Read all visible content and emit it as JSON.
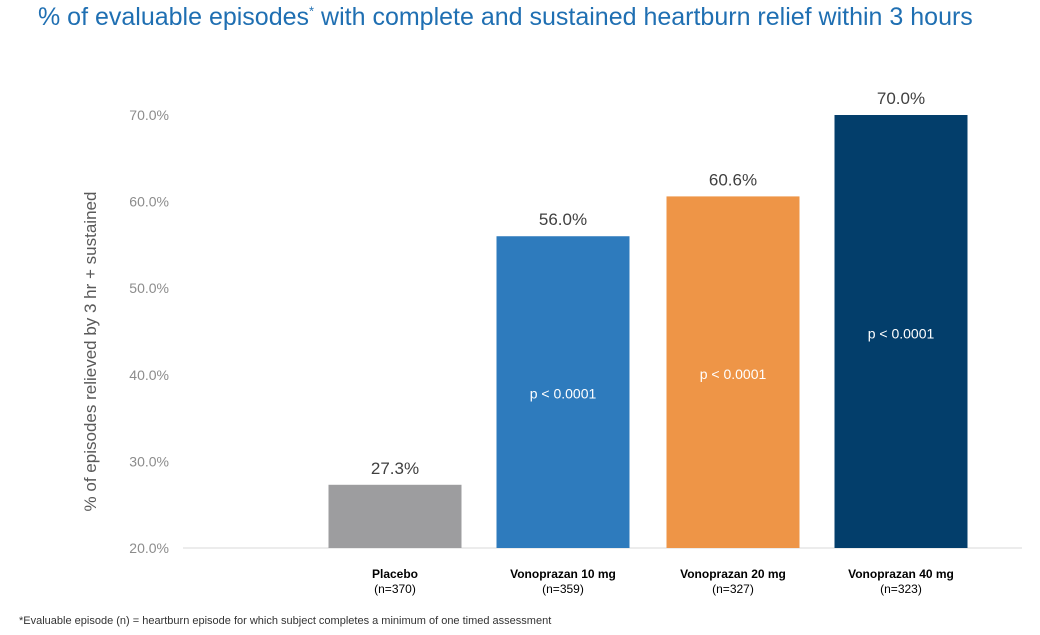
{
  "title": {
    "prefix": "% of evaluable episodes",
    "marker": "*",
    "suffix": " with complete and sustained heartburn relief within 3 hours"
  },
  "chart_data": {
    "type": "bar",
    "title": "% of evaluable episodes* with complete and sustained heartburn relief within 3 hours",
    "xlabel": "",
    "ylabel": "% of episodes relieved by 3 hr + sustained",
    "ylim": [
      20,
      70
    ],
    "yticks": [
      20,
      30,
      40,
      50,
      60,
      70
    ],
    "ytick_labels": [
      "20.0%",
      "30.0%",
      "40.0%",
      "50.0%",
      "60.0%",
      "70.0%"
    ],
    "grid": false,
    "categories": [
      "Placebo",
      "Vonoprazan 10 mg",
      "Vonoprazan 20 mg",
      "Vonoprazan 40 mg"
    ],
    "category_n": [
      "(n=370)",
      "(n=359)",
      "(n=327)",
      "(n=323)"
    ],
    "values": [
      27.3,
      56.0,
      60.6,
      70.0
    ],
    "value_labels": [
      "27.3%",
      "56.0%",
      "60.6%",
      "70.0%"
    ],
    "p_values": [
      "",
      "p < 0.0001",
      "p < 0.0001",
      "p < 0.0001"
    ],
    "colors": [
      "#9d9d9f",
      "#2e7bbd",
      "#ee9547",
      "#033e6b"
    ]
  },
  "footnote": "*Evaluable episode (n) = heartburn episode for which subject completes a minimum of one timed assessment"
}
